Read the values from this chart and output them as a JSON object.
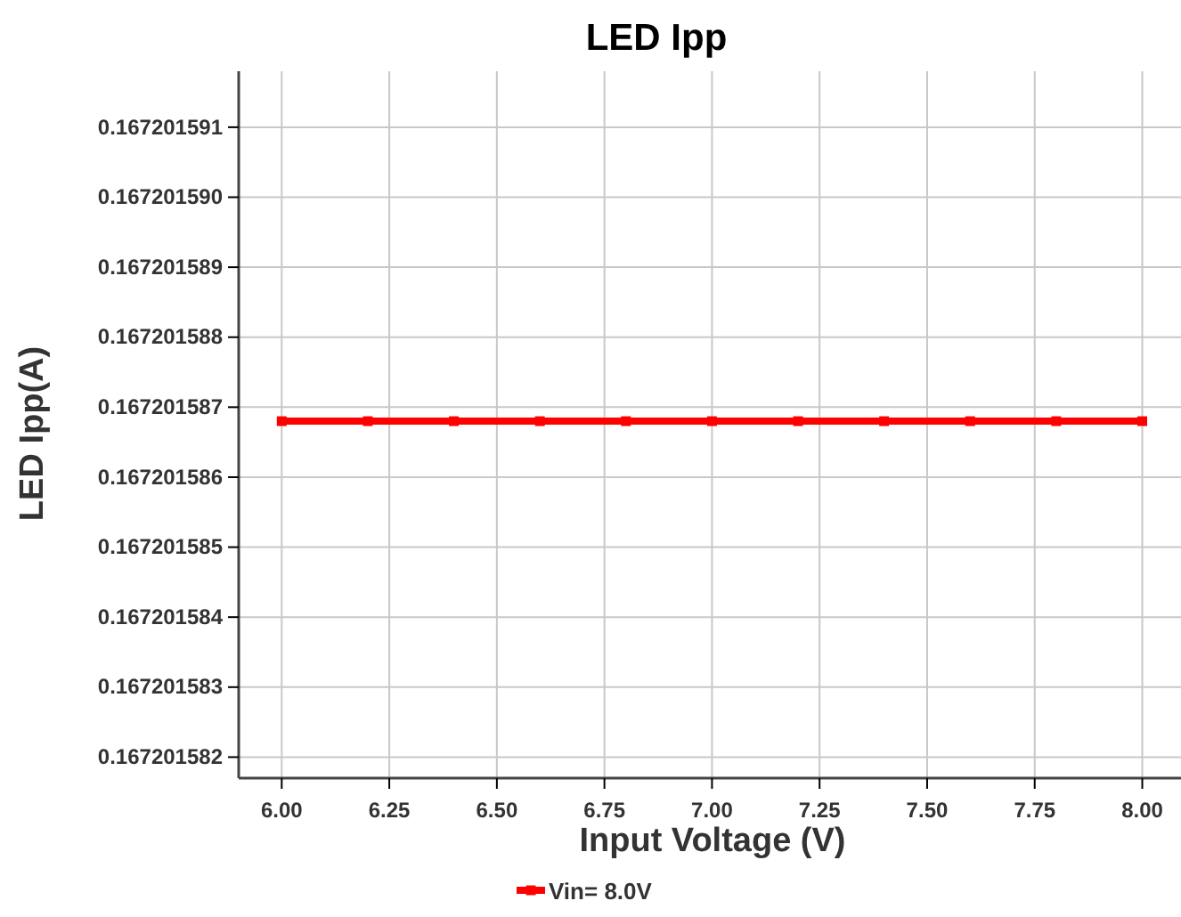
{
  "chart_data": {
    "type": "line",
    "title": "LED Ipp",
    "xlabel": "Input Voltage (V)",
    "ylabel": "LED Ipp(A)",
    "x": [
      6.0,
      6.2,
      6.4,
      6.6,
      6.8,
      7.0,
      7.2,
      7.4,
      7.6,
      7.8,
      8.0
    ],
    "series": [
      {
        "name": "Vin= 8.0V",
        "color": "#ff0000",
        "values": [
          0.1672015868,
          0.1672015868,
          0.1672015868,
          0.1672015868,
          0.1672015868,
          0.1672015868,
          0.1672015868,
          0.1672015868,
          0.1672015868,
          0.1672015868,
          0.1672015868
        ]
      }
    ],
    "xlim": [
      5.9,
      8.09
    ],
    "xticks": [
      {
        "value": 6,
        "label": "6.00"
      },
      {
        "value": 6.25,
        "label": "6.25"
      },
      {
        "value": 6.5,
        "label": "6.50"
      },
      {
        "value": 6.75,
        "label": "6.75"
      },
      {
        "value": 7,
        "label": "7.00"
      },
      {
        "value": 7.25,
        "label": "7.25"
      },
      {
        "value": 7.5,
        "label": "7.50"
      },
      {
        "value": 7.75,
        "label": "7.75"
      },
      {
        "value": 8,
        "label": "8.00"
      }
    ],
    "ylim": [
      0.1672015817,
      0.1672015918
    ],
    "yticks": [
      0.167201582,
      0.167201583,
      0.167201584,
      0.167201585,
      0.167201586,
      0.167201587,
      0.167201588,
      0.167201589,
      {
        "value": 0.16720159,
        "label": "0.167201590"
      },
      0.167201591
    ],
    "grid": true,
    "legend": "bottom",
    "marker": "square",
    "line_style": "solid"
  }
}
